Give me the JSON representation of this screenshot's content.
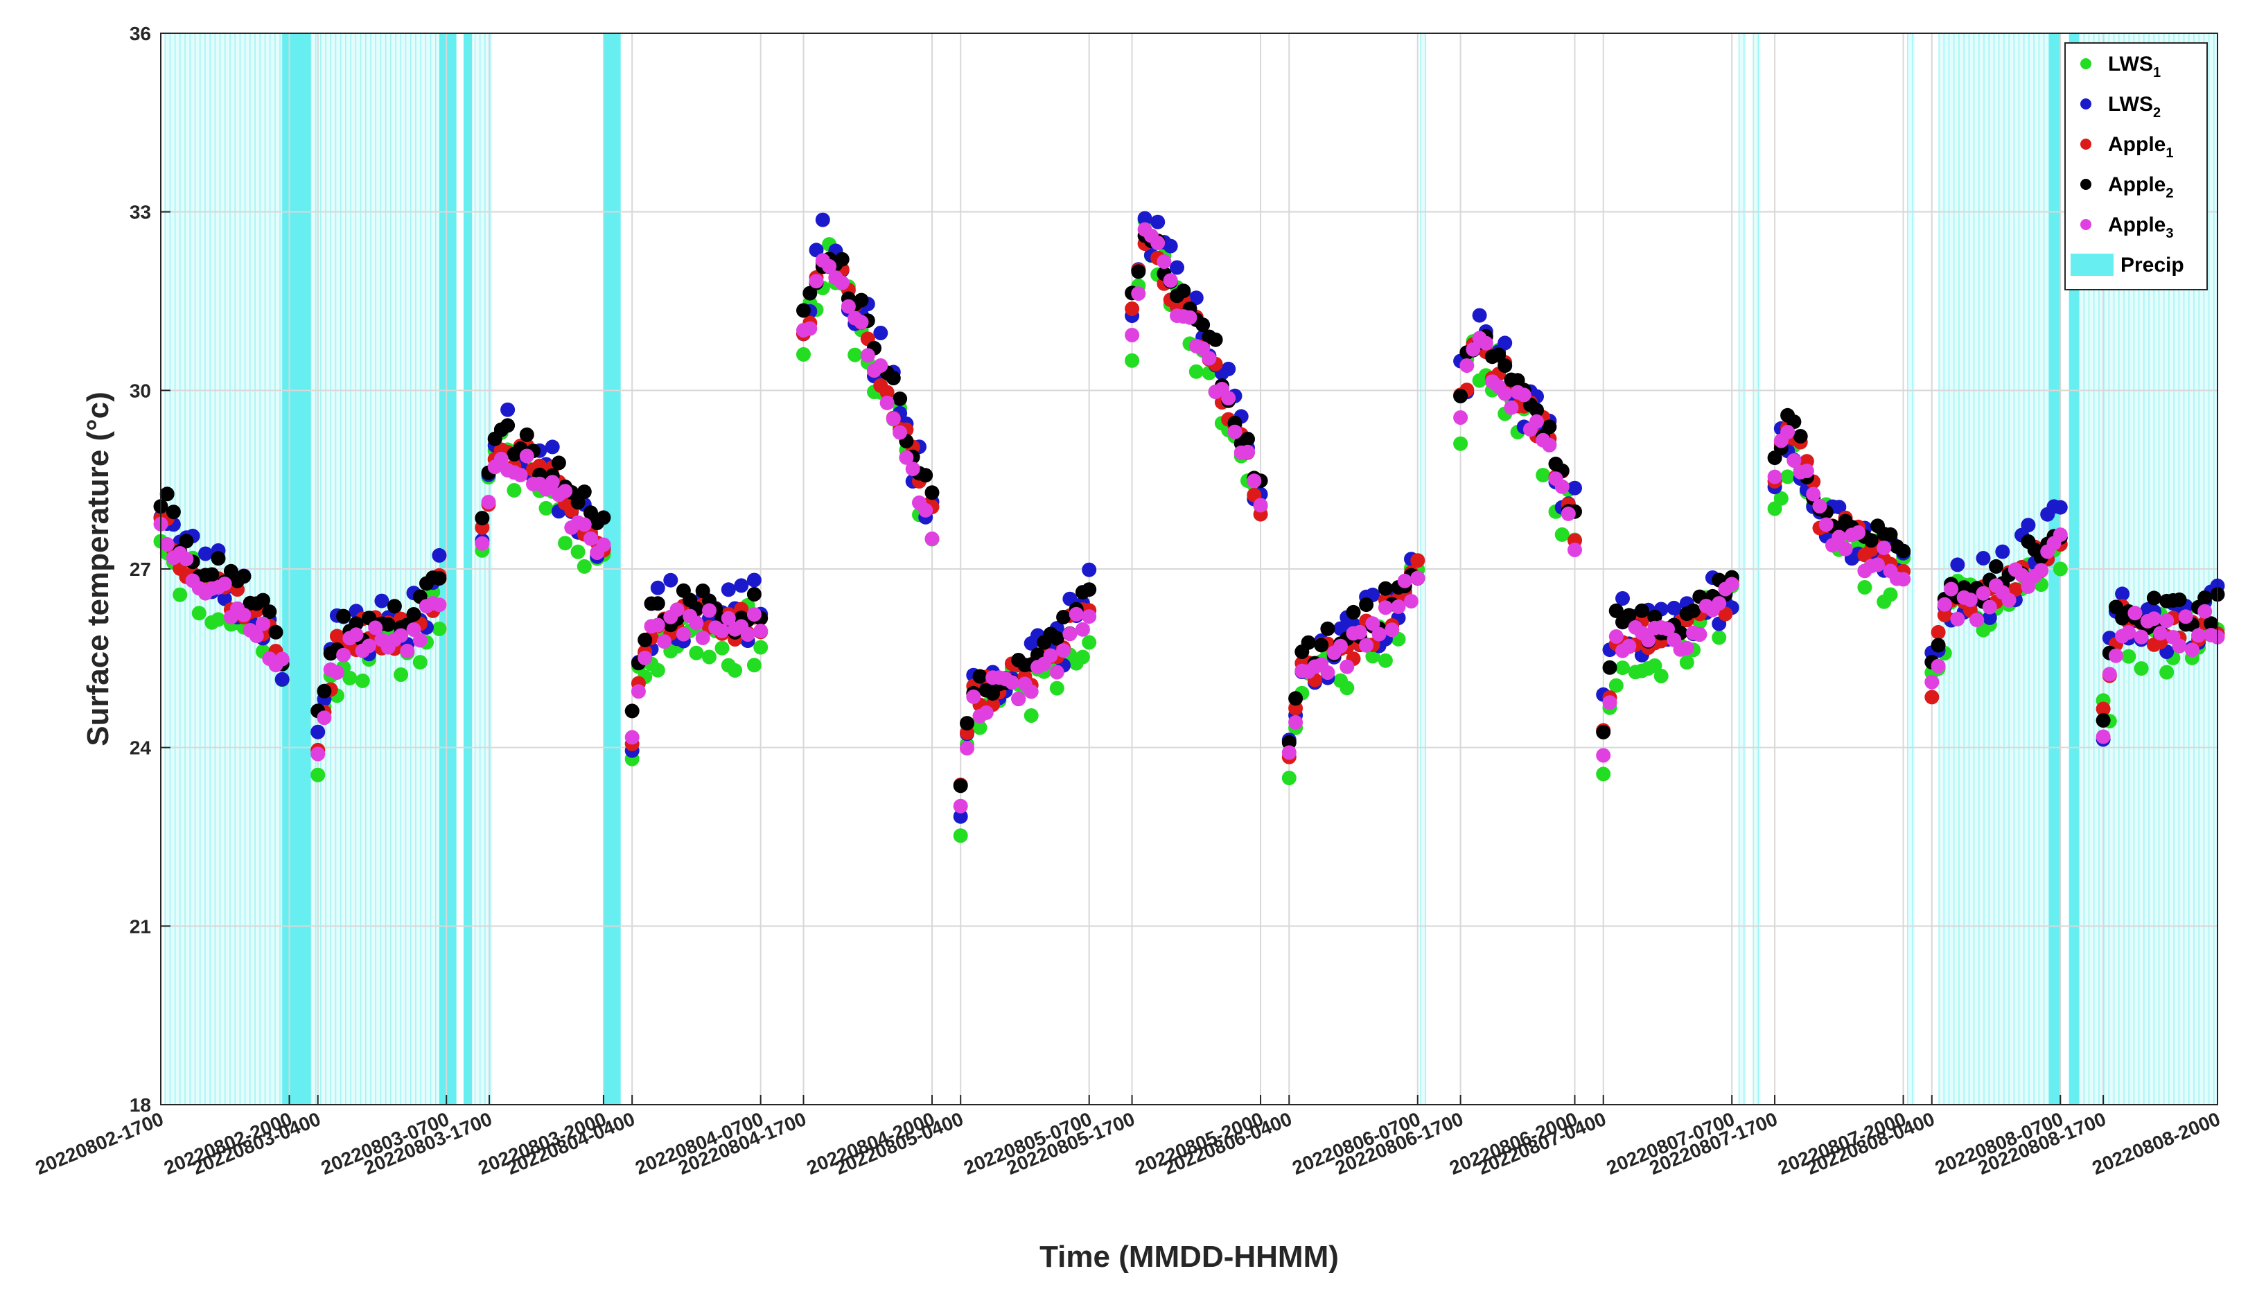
{
  "chart_data": {
    "type": "scatter",
    "title": "",
    "xlabel": "Time (MMDD-HHMM)",
    "ylabel": "Surface temperature (°c)",
    "ylim": [
      18,
      36
    ],
    "yticks": [
      18,
      21,
      24,
      27,
      30,
      33,
      36
    ],
    "xlim": [
      0,
      144
    ],
    "grid": true,
    "legend_position": "top-right",
    "colors": {
      "LWS1": "#22dd22",
      "LWS2": "#1a1acc",
      "Apple1": "#dd1a1a",
      "Apple2": "#000000",
      "Apple3": "#e040e0",
      "Precip": "#66eef0"
    },
    "xtick_labels": [
      {
        "t": 0,
        "label": "20220802-1700"
      },
      {
        "t": 9,
        "label": "20220802-2000"
      },
      {
        "t": 11,
        "label": "20220803-0400"
      },
      {
        "t": 20,
        "label": "20220803-0700"
      },
      {
        "t": 23,
        "label": "20220803-1700"
      },
      {
        "t": 31,
        "label": "20220803-2000"
      },
      {
        "t": 33,
        "label": "20220804-0400"
      },
      {
        "t": 42,
        "label": "20220804-0700"
      },
      {
        "t": 45,
        "label": "20220804-1700"
      },
      {
        "t": 54,
        "label": "20220804-2000"
      },
      {
        "t": 56,
        "label": "20220805-0400"
      },
      {
        "t": 65,
        "label": "20220805-0700"
      },
      {
        "t": 68,
        "label": "20220805-1700"
      },
      {
        "t": 77,
        "label": "20220805-2000"
      },
      {
        "t": 79,
        "label": "20220806-0400"
      },
      {
        "t": 88,
        "label": "20220806-0700"
      },
      {
        "t": 91,
        "label": "20220806-1700"
      },
      {
        "t": 99,
        "label": "20220806-2000"
      },
      {
        "t": 101,
        "label": "20220807-0400"
      },
      {
        "t": 110,
        "label": "20220807-0700"
      },
      {
        "t": 113,
        "label": "20220807-1700"
      },
      {
        "t": 122,
        "label": "20220807-2000"
      },
      {
        "t": 124,
        "label": "20220808-0400"
      },
      {
        "t": 133,
        "label": "20220808-0700"
      },
      {
        "t": 136,
        "label": "20220808-1700"
      },
      {
        "t": 144,
        "label": "20220808-2000"
      }
    ],
    "precip_bands": [
      [
        8.5,
        10.5
      ],
      [
        19.5,
        20.7
      ],
      [
        21.2,
        21.8
      ],
      [
        31,
        32.2
      ],
      [
        132.2,
        133
      ],
      [
        133.6,
        134.3
      ]
    ],
    "precip_light_bands": [
      [
        0.3,
        8.5
      ],
      [
        10.5,
        19.5
      ],
      [
        22,
        23.2
      ],
      [
        88.2,
        88.6
      ],
      [
        110.5,
        111
      ],
      [
        111.5,
        112
      ],
      [
        122.3,
        122.8
      ],
      [
        124.5,
        132.2
      ],
      [
        134.3,
        144
      ]
    ],
    "segments": [
      {
        "t0": 0,
        "t1": 8.5,
        "cur": [
          [
            0,
            28
          ],
          [
            1.5,
            27.2
          ],
          [
            3.5,
            26.8
          ],
          [
            6,
            26.4
          ],
          [
            8.5,
            25.5
          ]
        ]
      },
      {
        "t0": 11,
        "t1": 19.5,
        "cur": [
          [
            11,
            24.2
          ],
          [
            12.5,
            25.8
          ],
          [
            15,
            25.9
          ],
          [
            17.5,
            26
          ],
          [
            19.5,
            26.6
          ]
        ]
      },
      {
        "t0": 22.5,
        "t1": 31,
        "cur": [
          [
            22.5,
            27.8
          ],
          [
            23.5,
            29.1
          ],
          [
            26,
            28.8
          ],
          [
            29,
            28
          ],
          [
            31,
            27.4
          ]
        ]
      },
      {
        "t0": 33,
        "t1": 42,
        "cur": [
          [
            33,
            24.3
          ],
          [
            34,
            26
          ],
          [
            37,
            26.2
          ],
          [
            40,
            26
          ],
          [
            42,
            26.2
          ]
        ]
      },
      {
        "t0": 45,
        "t1": 54,
        "cur": [
          [
            45,
            31.0
          ],
          [
            46.5,
            32.3
          ],
          [
            48,
            31.7
          ],
          [
            51,
            30
          ],
          [
            54,
            27.8
          ]
        ]
      },
      {
        "t0": 56,
        "t1": 65,
        "cur": [
          [
            56,
            23.2
          ],
          [
            56.8,
            24.8
          ],
          [
            59,
            25.1
          ],
          [
            62,
            25.3
          ],
          [
            65,
            26.5
          ]
        ]
      },
      {
        "t0": 68,
        "t1": 77,
        "cur": [
          [
            68,
            31.2
          ],
          [
            69,
            32.8
          ],
          [
            71,
            31.6
          ],
          [
            74,
            30.3
          ],
          [
            77,
            28.2
          ]
        ]
      },
      {
        "t0": 79,
        "t1": 88,
        "cur": [
          [
            79,
            24.0
          ],
          [
            80,
            25.3
          ],
          [
            83,
            25.7
          ],
          [
            85.5,
            26.1
          ],
          [
            88,
            26.9
          ]
        ]
      },
      {
        "t0": 91,
        "t1": 99,
        "cur": [
          [
            91,
            29.8
          ],
          [
            92,
            30.8
          ],
          [
            94,
            30.3
          ],
          [
            97,
            29.2
          ],
          [
            99,
            27.7
          ]
        ]
      },
      {
        "t0": 101,
        "t1": 110,
        "cur": [
          [
            101,
            24.2
          ],
          [
            102,
            26
          ],
          [
            104.5,
            25.8
          ],
          [
            107.5,
            26.1
          ],
          [
            110,
            26.6
          ]
        ]
      },
      {
        "t0": 113,
        "t1": 122,
        "cur": [
          [
            113,
            28.6
          ],
          [
            114,
            29.4
          ],
          [
            116,
            28
          ],
          [
            119,
            27.4
          ],
          [
            122,
            27
          ]
        ]
      },
      {
        "t0": 124,
        "t1": 133,
        "cur": [
          [
            124,
            25.1
          ],
          [
            125,
            26.5
          ],
          [
            128,
            26.5
          ],
          [
            130.5,
            27
          ],
          [
            133,
            27.5
          ]
        ]
      },
      {
        "t0": 136,
        "t1": 144,
        "cur": [
          [
            136,
            24.5
          ],
          [
            137,
            26.1
          ],
          [
            140,
            26
          ],
          [
            142,
            26
          ],
          [
            144,
            26.2
          ]
        ]
      }
    ],
    "series": [
      {
        "name": "LWS1",
        "label": "LWS",
        "sub": "1",
        "offset": -0.25,
        "jitter": 0.55,
        "seed": 11
      },
      {
        "name": "LWS2",
        "label": "LWS",
        "sub": "2",
        "offset": 0.15,
        "jitter": 0.55,
        "seed": 23
      },
      {
        "name": "Apple1",
        "label": "Apple",
        "sub": "1",
        "offset": 0.0,
        "jitter": 0.3,
        "seed": 37
      },
      {
        "name": "Apple2",
        "label": "Apple",
        "sub": "2",
        "offset": 0.2,
        "jitter": 0.3,
        "seed": 41
      },
      {
        "name": "Apple3",
        "label": "Apple",
        "sub": "3",
        "offset": -0.1,
        "jitter": 0.3,
        "seed": 53
      }
    ],
    "legend_precip_label": "Precip"
  }
}
